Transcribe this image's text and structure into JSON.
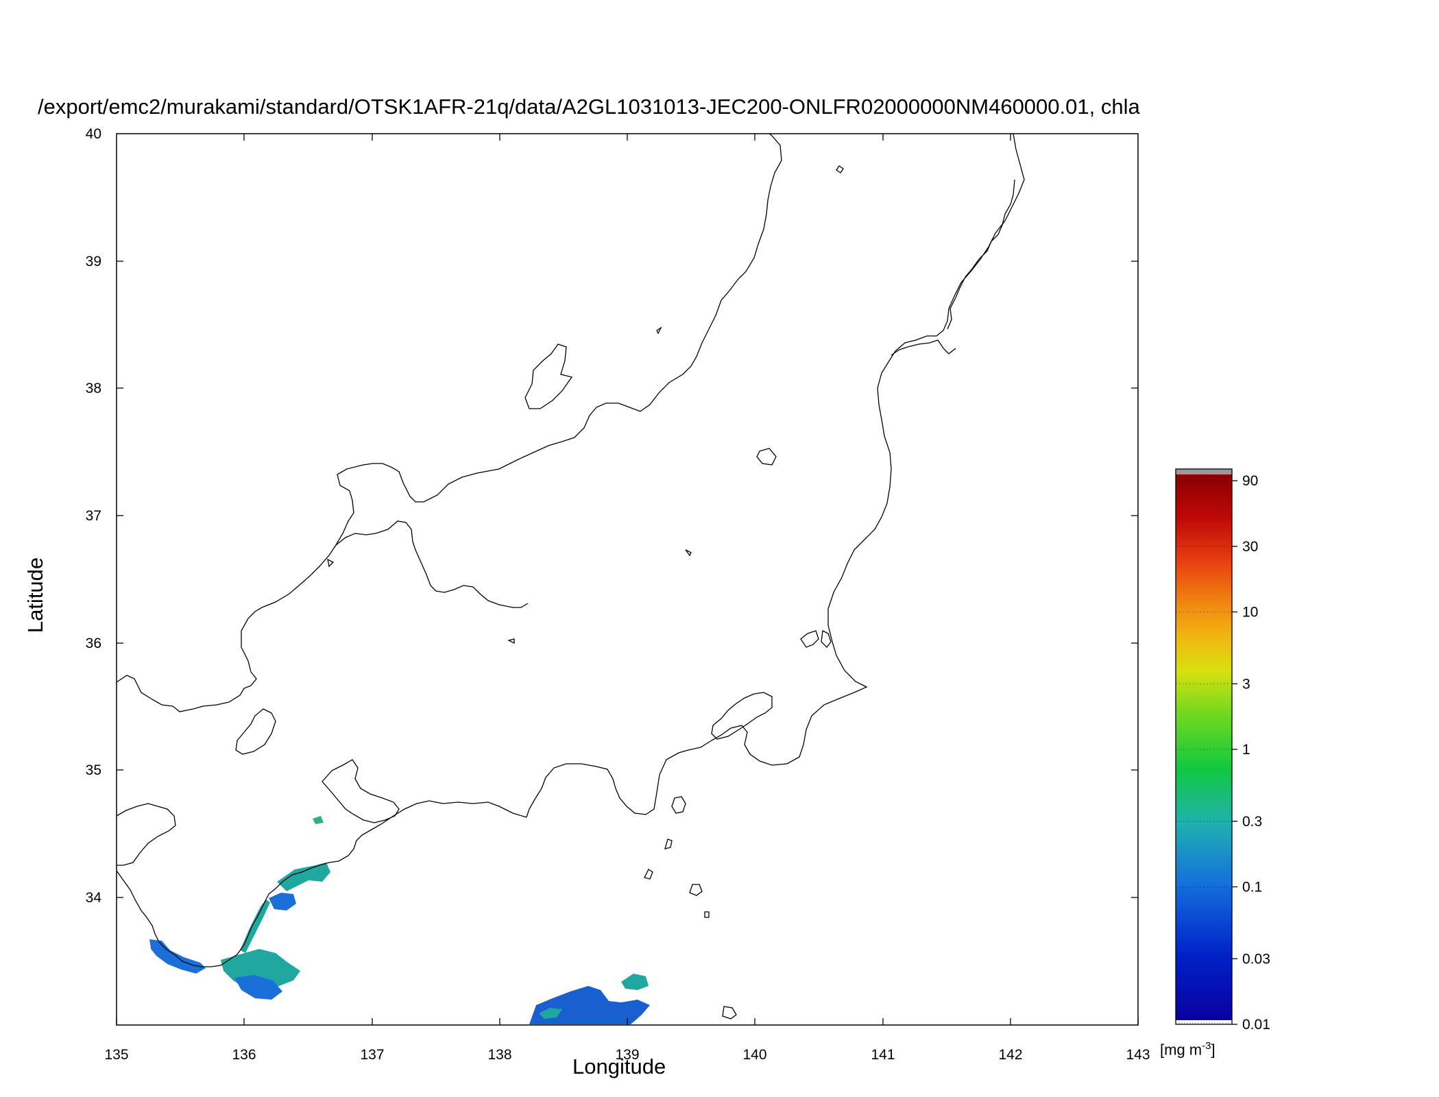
{
  "figure": {
    "title": "/export/emc2/murakami/standard/OTSK1AFR-21q/data/A2GL1031013-JEC200-ONLFR02000000NM460000.01, chla",
    "xlabel": "Longitude",
    "ylabel": "Latitude"
  },
  "axes": {
    "x_range": [
      135,
      143
    ],
    "y_range": [
      33,
      40
    ],
    "x_ticks": [
      "135",
      "136",
      "137",
      "138",
      "139",
      "140",
      "141",
      "142",
      "143"
    ],
    "y_ticks": [
      "34",
      "35",
      "36",
      "37",
      "38",
      "39",
      "40"
    ]
  },
  "colorbar": {
    "units_prefix": "[mg m",
    "units_exp": "-3",
    "units_suffix": "]",
    "scale": "log",
    "range": [
      0.01,
      100
    ],
    "tick_labels": [
      "0.01",
      "0.03",
      "0.1",
      "0.3",
      "1",
      "3",
      "10",
      "30",
      "90"
    ],
    "tick_values": [
      0.01,
      0.03,
      0.1,
      0.3,
      1,
      3,
      10,
      30,
      90
    ],
    "colors": [
      "#0a00a0",
      "#0044dd",
      "#1790d8",
      "#20b0a0",
      "#10c840",
      "#55d820",
      "#b8e010",
      "#f0c010",
      "#f08010",
      "#e03010",
      "#b00000",
      "#8a0000"
    ],
    "top_cap_color": "#9a9a9a"
  },
  "chla_patches": [
    {
      "lon": 136.45,
      "lat": 34.15,
      "level": "0.3"
    },
    {
      "lon": 136.3,
      "lat": 33.95,
      "level": "0.1"
    },
    {
      "lon": 135.4,
      "lat": 33.6,
      "level": "0.1"
    },
    {
      "lon": 136.2,
      "lat": 33.45,
      "level": "0.1"
    },
    {
      "lon": 138.5,
      "lat": 33.1,
      "level": "0.1"
    },
    {
      "lon": 139.0,
      "lat": 33.35,
      "level": "0.3"
    }
  ]
}
